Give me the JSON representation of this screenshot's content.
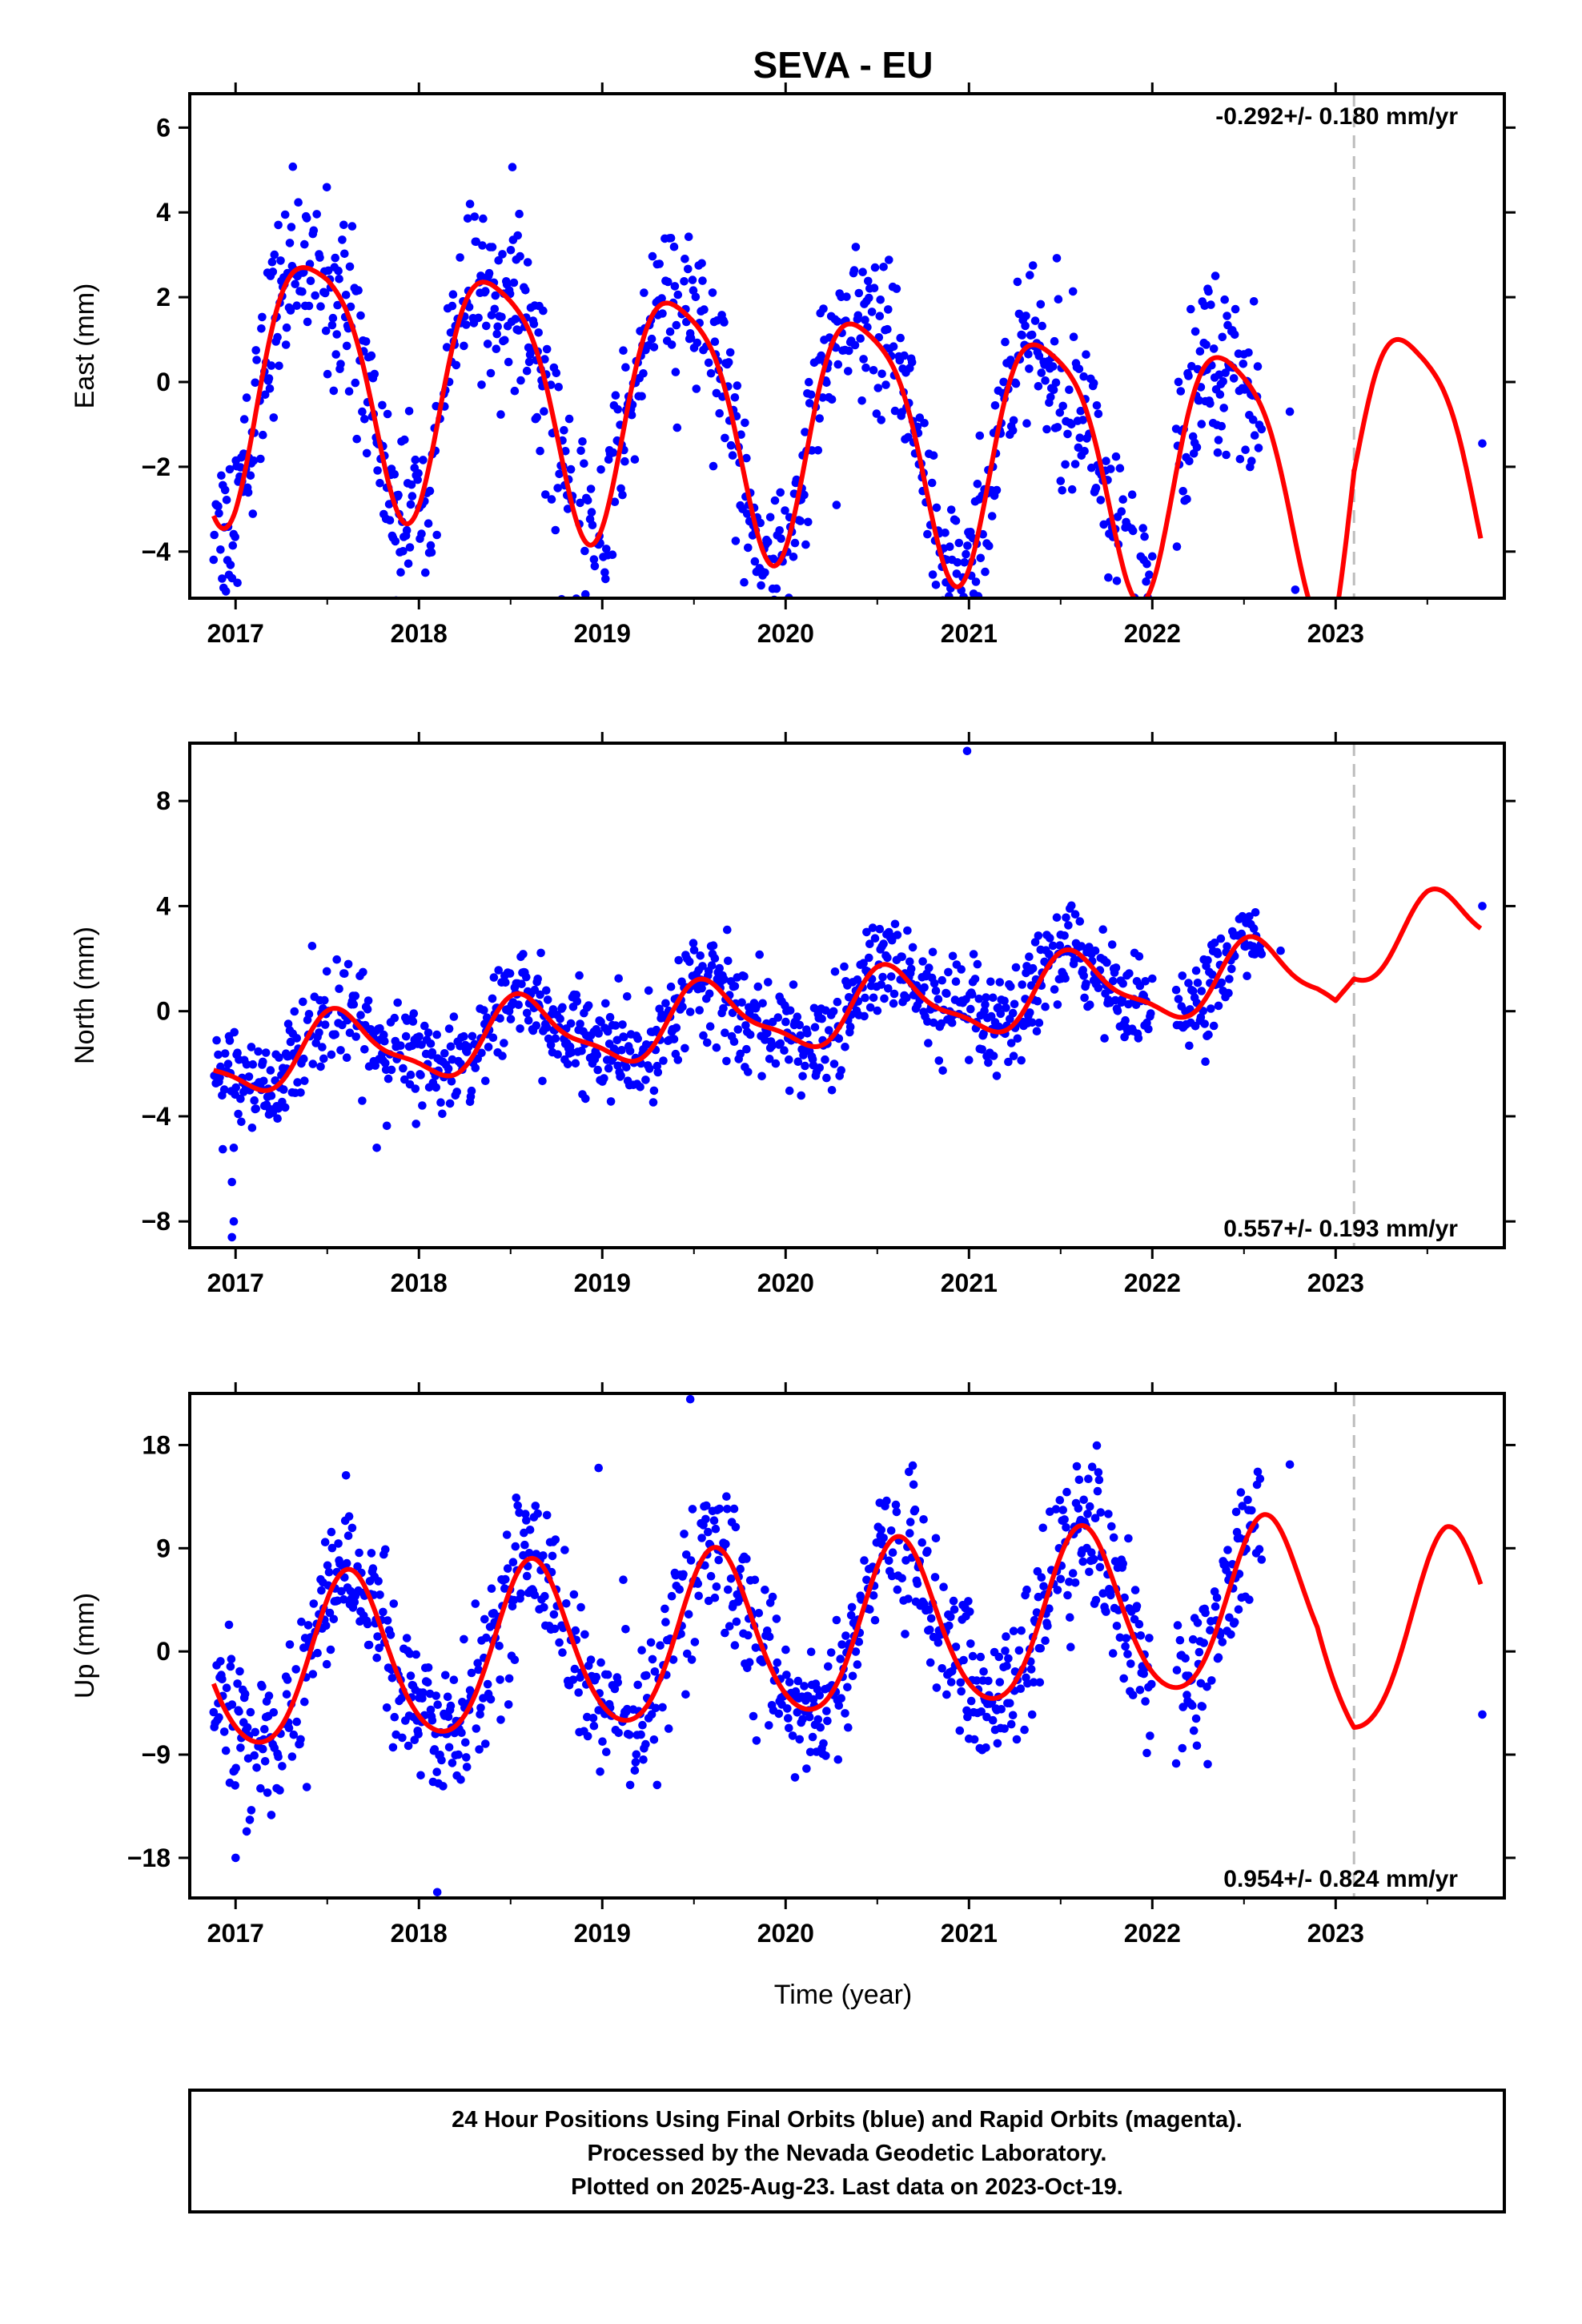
{
  "title": "SEVA - EU",
  "xlabel": "Time (year)",
  "footer": {
    "line1": "24 Hour Positions Using Final Orbits (blue) and Rapid Orbits (magenta).",
    "line2": "Processed by the Nevada Geodetic Laboratory.",
    "line3": "Plotted on 2025-Aug-23. Last data on 2023-Oct-19."
  },
  "colors": {
    "data": "#0000ff",
    "model": "#ff0000",
    "break": "#bdbdbd",
    "frame": "#000000"
  },
  "chart_data": [
    {
      "type": "scatter",
      "ylabel": "East (mm)",
      "rate": "-0.292+/- 0.180 mm/yr",
      "rate_position": "top-right",
      "xlim": [
        2016.75,
        2023.92
      ],
      "ylim": [
        -5.1,
        6.8
      ],
      "yticks": [
        -4,
        -2,
        0,
        2,
        4,
        6
      ],
      "xticks": [
        2017,
        2018,
        2019,
        2020,
        2021,
        2022,
        2023
      ],
      "break_year": 2023.1,
      "model": {
        "offset": 0.0,
        "trend": -0.292,
        "annual_amp": 2.9,
        "annual_peak": 0.42,
        "semi_amp": 0.6,
        "semi_phase": 0.2,
        "noise": 1.0,
        "extra": [
          {
            "x": 2017.5,
            "y": 0.5
          },
          {
            "x": 2018.4,
            "y": 0.3
          },
          {
            "x": 2019.4,
            "y": 0.1
          },
          {
            "x": 2020.4,
            "y": -0.1
          },
          {
            "x": 2021.4,
            "y": -0.3
          },
          {
            "x": 2022.4,
            "y": -0.3
          },
          {
            "x": 2022.9,
            "y": -0.6
          },
          {
            "x": 2023.0,
            "y": -0.8
          },
          {
            "x": 2023.1,
            "y": 0.7
          },
          {
            "x": 2023.45,
            "y": 0.3
          },
          {
            "x": 2023.85,
            "y": 0.0
          }
        ]
      },
      "data_end": 2022.6,
      "outliers": [
        {
          "x": 2022.75,
          "y": -0.7
        },
        {
          "x": 2022.78,
          "y": -4.9
        },
        {
          "x": 2023.8,
          "y": -1.45
        }
      ]
    },
    {
      "type": "scatter",
      "ylabel": "North (mm)",
      "rate": "0.557+/- 0.193 mm/yr",
      "rate_position": "bottom-right",
      "xlim": [
        2016.75,
        2023.92
      ],
      "ylim": [
        -9.0,
        10.2
      ],
      "yticks": [
        -8,
        -4,
        0,
        4,
        8
      ],
      "xticks": [
        2017,
        2018,
        2019,
        2020,
        2021,
        2022,
        2023
      ],
      "break_year": 2023.1,
      "model": {
        "offset": -1.8,
        "trend": 0.557,
        "annual_amp": 1.3,
        "annual_peak": 0.58,
        "semi_amp": 0.4,
        "semi_phase": 0.0,
        "noise": 0.9,
        "extra": [
          {
            "x": 2022.9,
            "y": -0.2
          },
          {
            "x": 2023.0,
            "y": -0.4
          },
          {
            "x": 2023.1,
            "y": 0.8
          },
          {
            "x": 2023.5,
            "y": 1.2
          }
        ]
      },
      "data_end": 2022.6,
      "outliers": [
        {
          "x": 2016.98,
          "y": -8.6
        },
        {
          "x": 2016.99,
          "y": -8.0
        },
        {
          "x": 2016.98,
          "y": -6.5
        },
        {
          "x": 2016.99,
          "y": -5.2
        },
        {
          "x": 2017.77,
          "y": -5.2
        },
        {
          "x": 2020.99,
          "y": 9.9
        },
        {
          "x": 2022.7,
          "y": 2.3
        },
        {
          "x": 2023.8,
          "y": 4.0
        }
      ]
    },
    {
      "type": "scatter",
      "ylabel": "Up (mm)",
      "rate": "0.954+/- 0.824 mm/yr",
      "rate_position": "bottom-right",
      "xlim": [
        2016.75,
        2023.92
      ],
      "ylim": [
        -21.5,
        22.5
      ],
      "yticks": [
        -18,
        -9,
        0,
        9,
        18
      ],
      "xticks": [
        2017,
        2018,
        2019,
        2020,
        2021,
        2022,
        2023
      ],
      "break_year": 2023.1,
      "model": {
        "offset": -1.5,
        "trend": 0.954,
        "annual_amp": 7.3,
        "annual_peak": 0.62,
        "semi_amp": 0.8,
        "semi_phase": 0.1,
        "noise": 3.2,
        "extra": [
          {
            "x": 2022.9,
            "y": 0.0
          },
          {
            "x": 2023.1,
            "y": -4.5
          },
          {
            "x": 2023.6,
            "y": -2.0
          }
        ]
      },
      "data_end": 2022.6,
      "outliers": [
        {
          "x": 2019.48,
          "y": 22.0
        },
        {
          "x": 2018.98,
          "y": 16.0
        },
        {
          "x": 2017.0,
          "y": -18.0
        },
        {
          "x": 2018.1,
          "y": -21.0
        },
        {
          "x": 2022.75,
          "y": 16.3
        },
        {
          "x": 2023.8,
          "y": -5.5
        }
      ]
    }
  ]
}
